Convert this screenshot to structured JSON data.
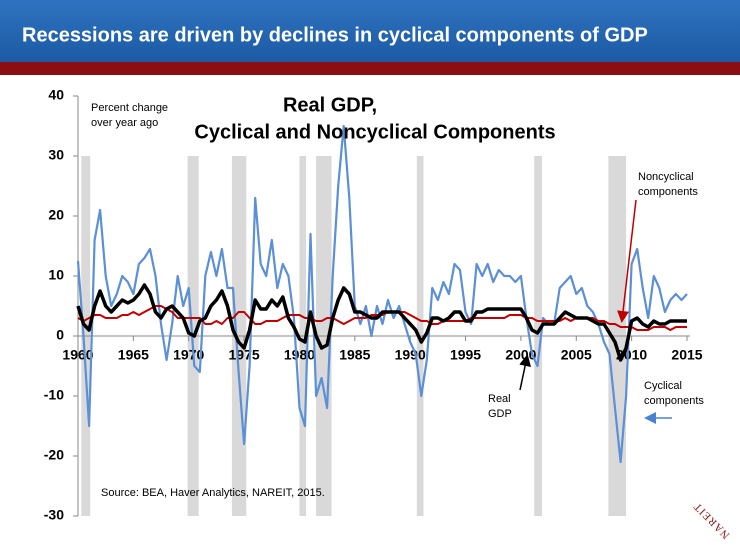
{
  "header": {
    "title": "Recessions are driven by declines in cyclical components of GDP"
  },
  "logo": "NAREIT",
  "chart_data": {
    "type": "line",
    "title": [
      "Real GDP,",
      "Cyclical and Noncyclical Components"
    ],
    "y_label": [
      "Percent change",
      "over year ago"
    ],
    "source": "Source: BEA, Haver Analytics, NAREIT, 2015.",
    "xlim": [
      1960,
      2015
    ],
    "xticks": [
      1960,
      1965,
      1970,
      1975,
      1980,
      1985,
      1990,
      1995,
      2000,
      2005,
      2010,
      2015
    ],
    "ylim": [
      -30,
      40
    ],
    "yticks": [
      -30,
      -20,
      -10,
      0,
      10,
      20,
      30,
      40
    ],
    "grid": false,
    "recessions": [
      [
        1960.3,
        1961.1
      ],
      [
        1969.9,
        1970.9
      ],
      [
        1973.9,
        1975.2
      ],
      [
        1980,
        1980.6
      ],
      [
        1981.5,
        1982.9
      ],
      [
        1990.6,
        1991.2
      ],
      [
        2001.2,
        2001.9
      ],
      [
        2007.9,
        2009.5
      ]
    ],
    "x": [
      1960,
      1960.5,
      1961,
      1961.5,
      1962,
      1962.5,
      1963,
      1963.5,
      1964,
      1964.5,
      1965,
      1965.5,
      1966,
      1966.5,
      1967,
      1967.5,
      1968,
      1968.5,
      1969,
      1969.5,
      1970,
      1970.5,
      1971,
      1971.5,
      1972,
      1972.5,
      1973,
      1973.5,
      1974,
      1974.5,
      1975,
      1975.5,
      1976,
      1976.5,
      1977,
      1977.5,
      1978,
      1978.5,
      1979,
      1979.5,
      1980,
      1980.5,
      1981,
      1981.5,
      1982,
      1982.5,
      1983,
      1983.5,
      1984,
      1984.5,
      1985,
      1985.5,
      1986,
      1986.5,
      1987,
      1987.5,
      1988,
      1988.5,
      1989,
      1989.5,
      1990,
      1990.5,
      1991,
      1991.5,
      1992,
      1992.5,
      1993,
      1993.5,
      1994,
      1994.5,
      1995,
      1995.5,
      1996,
      1996.5,
      1997,
      1997.5,
      1998,
      1998.5,
      1999,
      1999.5,
      2000,
      2000.5,
      2001,
      2001.5,
      2002,
      2002.5,
      2003,
      2003.5,
      2004,
      2004.5,
      2005,
      2005.5,
      2006,
      2006.5,
      2007,
      2007.5,
      2008,
      2008.5,
      2009,
      2009.5,
      2010,
      2010.5,
      2011,
      2011.5,
      2012,
      2012.5,
      2013,
      2013.5,
      2014,
      2014.5,
      2015
    ],
    "series": [
      {
        "name": "Cyclical components",
        "color": "#5b8fd6",
        "width": 2.2,
        "values": [
          12.5,
          0,
          -15,
          16,
          21,
          10,
          5,
          7,
          10,
          9,
          7,
          12,
          13,
          14.5,
          10,
          2,
          -4,
          2,
          10,
          5,
          8,
          -5,
          -6,
          10,
          14,
          10,
          14.5,
          8,
          8,
          -6,
          -18,
          -5,
          23,
          12,
          10,
          16,
          8,
          12,
          10,
          3,
          -12,
          -15,
          17,
          -10,
          -7,
          -12,
          10,
          25,
          35,
          23,
          5,
          2,
          5,
          0,
          5,
          2,
          6,
          3,
          5,
          2,
          -1,
          -3,
          -10,
          -4,
          8,
          6,
          9,
          7,
          12,
          11,
          4,
          2,
          12,
          10,
          12,
          9,
          11,
          10,
          10,
          9,
          10,
          3,
          -3,
          -5,
          3,
          2,
          2,
          8,
          9,
          10,
          7,
          8,
          5,
          4,
          2,
          -1,
          -3,
          -12,
          -21,
          -10,
          12,
          14.5,
          8,
          3,
          10,
          8,
          4,
          6,
          7,
          6,
          7
        ]
      },
      {
        "name": "Noncyclical components",
        "color": "#c00000",
        "width": 2,
        "values": [
          3,
          2.5,
          3,
          3.5,
          3.5,
          3,
          3,
          3,
          3.5,
          3.5,
          4,
          3.5,
          4,
          4.5,
          5,
          5,
          4.5,
          4,
          3,
          3,
          3,
          3,
          3,
          2,
          2,
          2.5,
          2,
          3,
          3,
          4,
          4,
          3,
          2,
          2,
          2.5,
          2.5,
          2.5,
          3,
          3.5,
          3.5,
          3.5,
          3,
          3,
          2.5,
          2.5,
          3,
          3,
          2.5,
          2,
          2.5,
          3,
          3,
          3,
          3.5,
          3.5,
          3.5,
          4,
          4,
          4,
          4,
          3.5,
          3,
          2.5,
          2.5,
          2,
          2,
          2.5,
          2.5,
          2.5,
          2.5,
          2.5,
          3,
          3,
          3,
          3,
          3,
          3,
          3,
          3.5,
          3.5,
          3.5,
          3,
          3,
          2.5,
          2.5,
          2.5,
          2.5,
          2.5,
          3,
          2.5,
          3,
          3,
          3,
          3,
          2.5,
          2.5,
          2,
          2,
          1.5,
          1.5,
          1.5,
          1,
          1,
          1,
          1.5,
          1.5,
          1.5,
          1,
          1.5,
          1.5,
          1.5
        ]
      },
      {
        "name": "Real GDP",
        "color": "#000000",
        "width": 3.5,
        "values": [
          5,
          2,
          1,
          5,
          7.5,
          5,
          4,
          5,
          6,
          5.5,
          6,
          7,
          8.5,
          7,
          4,
          3,
          4.5,
          5,
          4,
          3,
          0.5,
          0,
          2.5,
          3,
          5,
          6,
          7.5,
          5,
          1,
          -1,
          -2,
          1,
          6,
          4.5,
          4.5,
          6,
          5,
          6.5,
          3,
          1.5,
          -0.5,
          -1,
          4,
          0,
          -2,
          -1.5,
          3,
          6,
          8,
          7,
          4,
          4,
          3.5,
          3,
          3,
          4,
          4,
          4,
          4,
          3,
          2,
          1,
          -1,
          0.5,
          3,
          3,
          2.5,
          3,
          4,
          4,
          2.5,
          2.5,
          4,
          4,
          4.5,
          4.5,
          4.5,
          4.5,
          4.5,
          4.5,
          4.5,
          3,
          1,
          0.5,
          2,
          2,
          2,
          3,
          4,
          3.5,
          3,
          3,
          3,
          2.5,
          2,
          2,
          0.5,
          -1,
          -4,
          -2,
          2.5,
          3,
          2,
          1.5,
          2.5,
          2,
          2,
          2.5,
          2.5,
          2.5,
          2.5
        ]
      }
    ]
  }
}
